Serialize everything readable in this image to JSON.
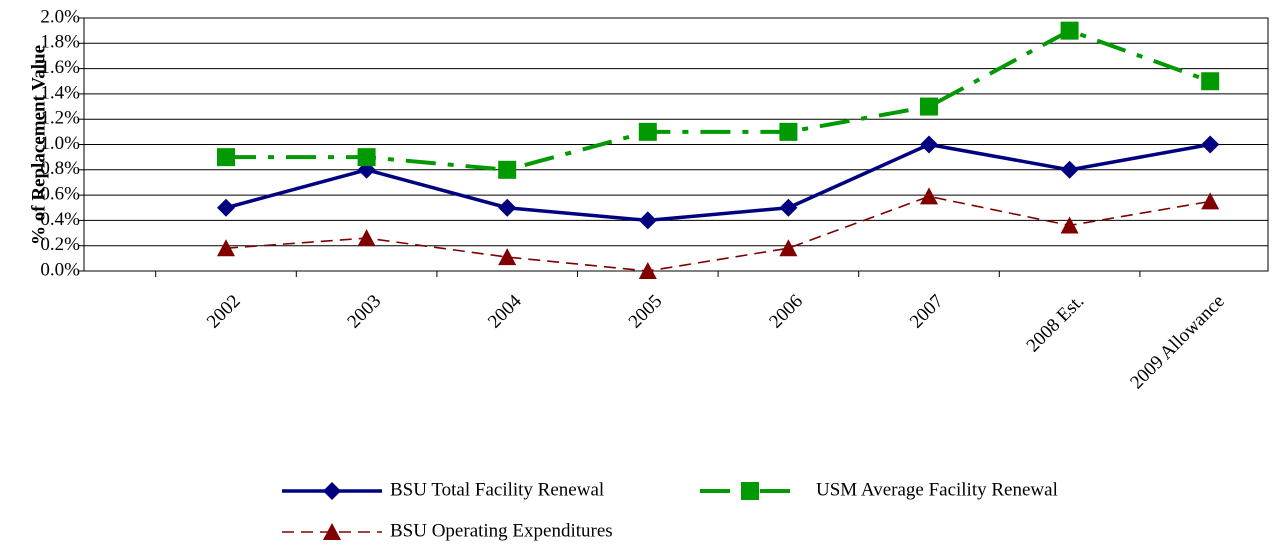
{
  "chart_data": {
    "type": "line",
    "y_label": "% of Replacement Value",
    "categories": [
      "2002",
      "2003",
      "2004",
      "2005",
      "2006",
      "2007",
      "2008 Est.",
      "2009 Allowance"
    ],
    "series": [
      {
        "name": "BSU Total Facility Renewal",
        "color": "#000080",
        "marker": "diamond",
        "dash": "solid",
        "values": [
          0.5,
          0.8,
          0.5,
          0.4,
          0.5,
          1.0,
          0.8,
          1.0
        ]
      },
      {
        "name": "USM Average Facility Renewal",
        "color": "#009900",
        "marker": "square",
        "dash": "dashdot",
        "values": [
          0.9,
          0.9,
          0.8,
          1.1,
          1.1,
          1.3,
          1.9,
          1.5
        ]
      },
      {
        "name": "BSU Operating Expenditures",
        "color": "#800000",
        "marker": "triangle",
        "dash": "dashed",
        "values": [
          0.18,
          0.26,
          0.11,
          0.0,
          0.18,
          0.59,
          0.36,
          0.55
        ]
      }
    ],
    "ylim": [
      0,
      2.0
    ],
    "yticks": [
      {
        "value": 0,
        "label": "0.0%"
      },
      {
        "value": 0.2,
        "label": "0.2%"
      },
      {
        "value": 0.4,
        "label": "0.4%"
      },
      {
        "value": 0.6,
        "label": "0.6%"
      },
      {
        "value": 0.8,
        "label": "0.8%"
      },
      {
        "value": 1.0,
        "label": "1.0%"
      },
      {
        "value": 1.2,
        "label": "1.2%"
      },
      {
        "value": 1.4,
        "label": "1.4%"
      },
      {
        "value": 1.6,
        "label": "1.6%"
      },
      {
        "value": 1.8,
        "label": "1.8%"
      },
      {
        "value": 2.0,
        "label": "2.0%"
      }
    ],
    "grid": true
  }
}
